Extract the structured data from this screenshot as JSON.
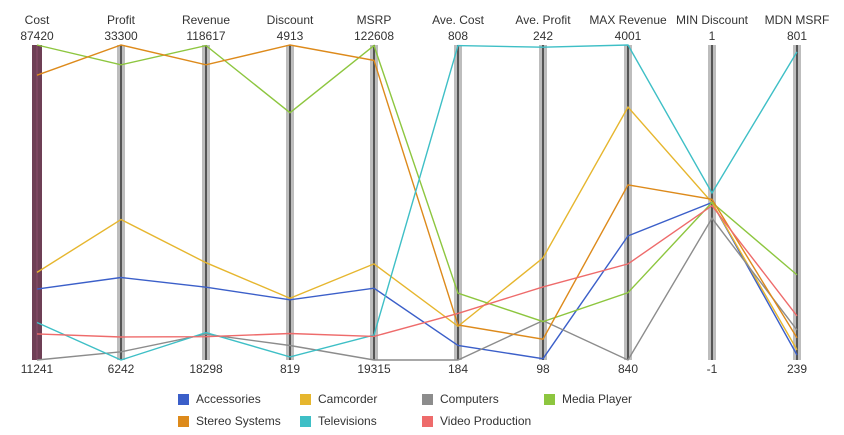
{
  "chart_data": {
    "type": "parallel-coordinates",
    "axes": [
      {
        "name": "Cost",
        "max": "87420",
        "min": "11241"
      },
      {
        "name": "Profit",
        "max": "33300",
        "min": "6242"
      },
      {
        "name": "Revenue",
        "max": "118617",
        "min": "18298"
      },
      {
        "name": "Discount",
        "max": "4913",
        "min": "819"
      },
      {
        "name": "MSRP",
        "max": "122608",
        "min": "19315"
      },
      {
        "name": "Ave. Cost",
        "max": "808",
        "min": "184"
      },
      {
        "name": "Ave. Profit",
        "max": "242",
        "min": "98"
      },
      {
        "name": "MAX Revenue",
        "max": "4001",
        "min": "840"
      },
      {
        "name": "MIN Discount",
        "max": "1",
        "min": "-1"
      },
      {
        "name": "MDN MSRF",
        "max": "801",
        "min": "239"
      }
    ],
    "series": [
      {
        "name": "Accessories",
        "color": "#3b5fc9",
        "values": [
          0.225,
          0.262,
          0.231,
          0.191,
          0.228,
          0.046,
          0.004,
          0.394,
          0.5,
          0.016
        ]
      },
      {
        "name": "Camcorder",
        "color": "#e6b62e",
        "values": [
          0.278,
          0.446,
          0.309,
          0.196,
          0.305,
          0.107,
          0.324,
          0.803,
          0.5,
          0.032
        ]
      },
      {
        "name": "Computers",
        "color": "#8c8c8c",
        "values": [
          0.0,
          0.026,
          0.082,
          0.046,
          0.0,
          0.0,
          0.125,
          0.0,
          0.45,
          0.095
        ]
      },
      {
        "name": "Media Player",
        "color": "#8dc63f",
        "values": [
          1.0,
          0.937,
          0.998,
          0.785,
          0.998,
          0.212,
          0.122,
          0.214,
          0.5,
          0.27
        ]
      },
      {
        "name": "Stereo Systems",
        "color": "#dd8a1b",
        "values": [
          0.904,
          1.0,
          0.937,
          1.0,
          0.951,
          0.111,
          0.066,
          0.556,
          0.51,
          0.07
        ]
      },
      {
        "name": "Televisions",
        "color": "#3ebfc6",
        "values": [
          0.119,
          0.0,
          0.087,
          0.01,
          0.079,
          0.998,
          0.993,
          1.0,
          0.53,
          0.978
        ]
      },
      {
        "name": "Video Production",
        "color": "#ee6b6b",
        "values": [
          0.083,
          0.073,
          0.074,
          0.084,
          0.075,
          0.148,
          0.232,
          0.305,
          0.49,
          0.14
        ]
      }
    ],
    "legend_position": "bottom"
  }
}
